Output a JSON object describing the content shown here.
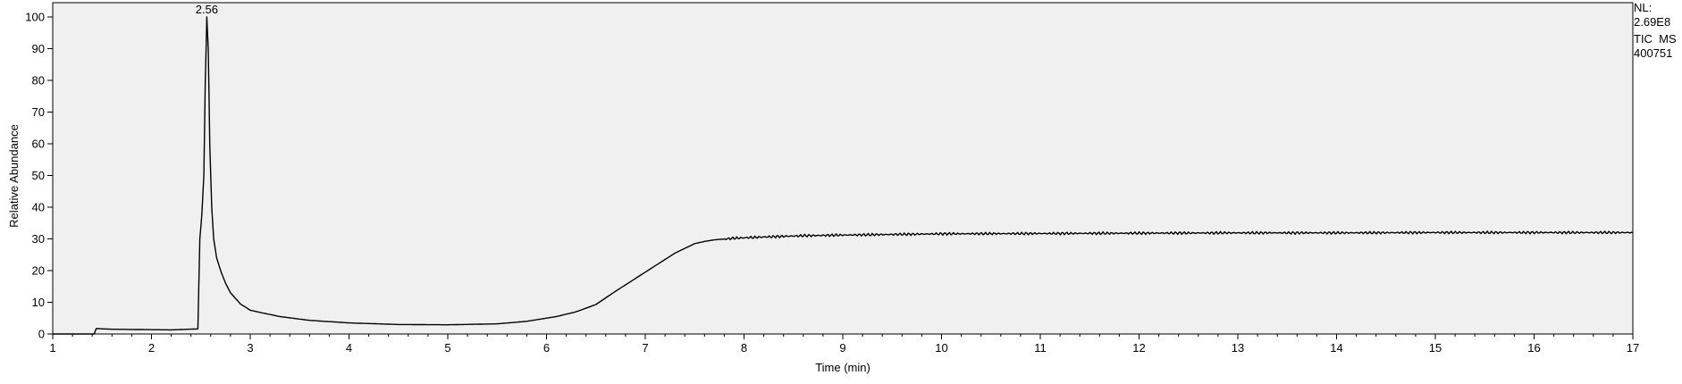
{
  "info": {
    "nl_label": "NL:",
    "nl_value": "2.69E8",
    "trace": "TIC  MS",
    "file_id": "400751"
  },
  "chart_data": {
    "type": "line",
    "title": "",
    "xlabel": "Time (min)",
    "ylabel": "Relative Abundance",
    "xlim": [
      1,
      17
    ],
    "ylim": [
      0,
      100
    ],
    "xticks": [
      1,
      2,
      3,
      4,
      5,
      6,
      7,
      8,
      9,
      10,
      11,
      12,
      13,
      14,
      15,
      16,
      17
    ],
    "yticks": [
      0,
      10,
      20,
      30,
      40,
      50,
      60,
      70,
      80,
      90,
      100
    ],
    "grid": false,
    "legend": "none",
    "plot_background": "#f0f0f0",
    "line_color": "#000000",
    "peak_labels": [
      {
        "x": 2.56,
        "y": 100,
        "text": "2.56"
      }
    ],
    "series": [
      {
        "x": [
          1.0,
          1.42,
          1.44,
          1.6,
          1.9,
          2.2,
          2.47,
          2.49,
          2.51,
          2.53,
          2.545,
          2.56,
          2.575,
          2.59,
          2.61,
          2.63,
          2.66,
          2.7,
          2.75,
          2.8,
          2.9,
          3.0,
          3.1,
          3.3,
          3.6,
          4.0,
          4.5,
          5.0,
          5.5,
          5.8,
          6.1,
          6.3,
          6.5,
          6.7,
          6.9,
          7.1,
          7.3,
          7.5,
          7.6,
          7.7,
          7.9,
          8.2,
          8.6,
          9.0,
          9.5,
          10.0,
          11.0,
          12.0,
          13.0,
          14.0,
          15.0,
          16.0,
          17.0
        ],
        "values": [
          0.0,
          0.0,
          1.7,
          1.5,
          1.4,
          1.3,
          1.6,
          30.0,
          38.0,
          50.0,
          80.0,
          100.0,
          90.0,
          60.0,
          40.0,
          30.0,
          24.0,
          20.0,
          16.0,
          13.0,
          9.5,
          7.5,
          6.8,
          5.5,
          4.3,
          3.5,
          3.0,
          2.9,
          3.2,
          4.0,
          5.5,
          7.0,
          9.3,
          13.5,
          17.5,
          21.5,
          25.5,
          28.5,
          29.2,
          29.7,
          30.2,
          30.6,
          31.0,
          31.2,
          31.4,
          31.6,
          31.7,
          31.8,
          31.9,
          31.9,
          32.0,
          32.0,
          32.0
        ]
      }
    ]
  }
}
